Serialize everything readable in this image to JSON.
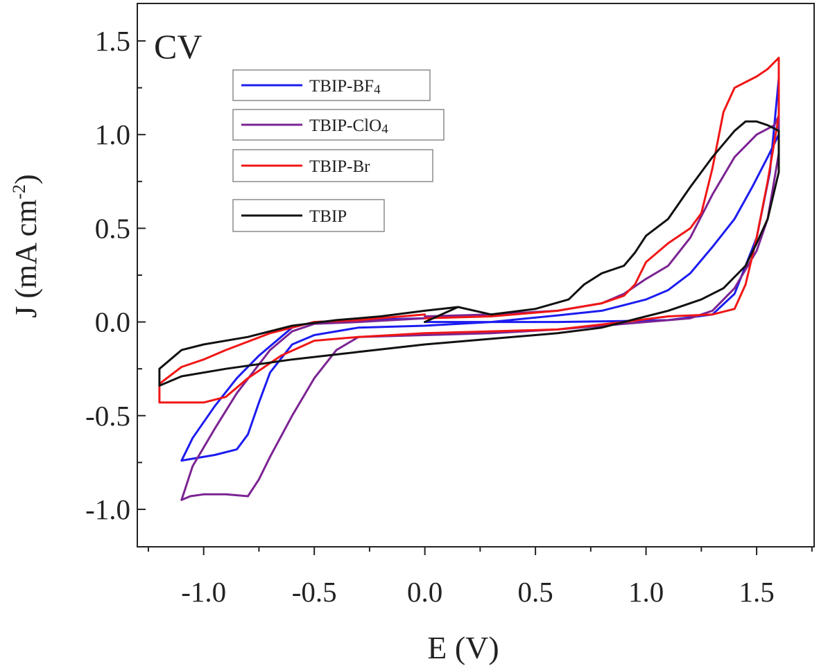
{
  "chart_data": {
    "type": "line",
    "title": "CV",
    "xlabel": "E (V)",
    "ylabel": "J (mA cm",
    "ylabel_sup": "-2",
    "ylabel_close": ")",
    "xlim": [
      -1.3,
      1.76
    ],
    "ylim": [
      -1.2,
      1.7
    ],
    "xticks": [
      -1.0,
      -0.5,
      0.0,
      0.5,
      1.0,
      1.5
    ],
    "xtick_labels": [
      "-1.0",
      "-0.5",
      "0.0",
      "0.5",
      "1.0",
      "1.5"
    ],
    "yticks": [
      -1.0,
      -0.5,
      0.0,
      0.5,
      1.0,
      1.5
    ],
    "ytick_labels": [
      "-1.0",
      "-0.5",
      "0.0",
      "0.5",
      "1.0",
      "1.5"
    ],
    "grid": false,
    "legend_position": "top-left",
    "colors": {
      "axis": "#222222",
      "ylabel": "#8a6a12"
    },
    "series": [
      {
        "name": "TBIP-BF",
        "name_sub": "4",
        "color": "#1c1cf0",
        "points": [
          [
            0.0,
            0.0
          ],
          [
            0.3,
            0.0
          ],
          [
            0.6,
            0.0
          ],
          [
            0.9,
            0.005
          ],
          [
            1.1,
            0.01
          ],
          [
            1.3,
            0.04
          ],
          [
            1.4,
            0.15
          ],
          [
            1.5,
            0.45
          ],
          [
            1.56,
            0.8
          ],
          [
            1.6,
            1.3
          ],
          [
            1.6,
            1.0
          ],
          [
            1.55,
            0.88
          ],
          [
            1.48,
            0.72
          ],
          [
            1.4,
            0.55
          ],
          [
            1.3,
            0.4
          ],
          [
            1.2,
            0.26
          ],
          [
            1.1,
            0.17
          ],
          [
            1.0,
            0.12
          ],
          [
            0.9,
            0.09
          ],
          [
            0.8,
            0.06
          ],
          [
            0.6,
            0.035
          ],
          [
            0.3,
            0.0
          ],
          [
            0.0,
            -0.02
          ],
          [
            -0.3,
            -0.03
          ],
          [
            -0.5,
            -0.07
          ],
          [
            -0.6,
            -0.12
          ],
          [
            -0.7,
            -0.27
          ],
          [
            -0.75,
            -0.43
          ],
          [
            -0.8,
            -0.6
          ],
          [
            -0.85,
            -0.68
          ],
          [
            -0.95,
            -0.71
          ],
          [
            -1.05,
            -0.73
          ],
          [
            -1.1,
            -0.74
          ],
          [
            -1.05,
            -0.62
          ],
          [
            -0.95,
            -0.45
          ],
          [
            -0.85,
            -0.3
          ],
          [
            -0.75,
            -0.18
          ],
          [
            -0.6,
            -0.03
          ],
          [
            -0.5,
            0.0
          ],
          [
            -0.3,
            0.01
          ],
          [
            0.0,
            0.02
          ]
        ]
      },
      {
        "name": "TBIP-ClO",
        "name_sub": "4",
        "color": "#7b2392",
        "points": [
          [
            0.0,
            0.03
          ],
          [
            0.3,
            0.04
          ],
          [
            0.6,
            0.06
          ],
          [
            0.8,
            0.1
          ],
          [
            0.9,
            0.15
          ],
          [
            1.0,
            0.23
          ],
          [
            1.1,
            0.3
          ],
          [
            1.2,
            0.45
          ],
          [
            1.3,
            0.68
          ],
          [
            1.4,
            0.88
          ],
          [
            1.5,
            1.0
          ],
          [
            1.58,
            1.05
          ],
          [
            1.6,
            1.1
          ],
          [
            1.6,
            0.9
          ],
          [
            1.55,
            0.55
          ],
          [
            1.5,
            0.38
          ],
          [
            1.4,
            0.18
          ],
          [
            1.3,
            0.06
          ],
          [
            1.2,
            0.02
          ],
          [
            1.0,
            0.0
          ],
          [
            0.8,
            -0.02
          ],
          [
            0.6,
            -0.04
          ],
          [
            0.3,
            -0.06
          ],
          [
            0.0,
            -0.07
          ],
          [
            -0.3,
            -0.08
          ],
          [
            -0.4,
            -0.15
          ],
          [
            -0.5,
            -0.3
          ],
          [
            -0.6,
            -0.5
          ],
          [
            -0.7,
            -0.72
          ],
          [
            -0.75,
            -0.84
          ],
          [
            -0.8,
            -0.93
          ],
          [
            -0.9,
            -0.92
          ],
          [
            -1.0,
            -0.92
          ],
          [
            -1.06,
            -0.93
          ],
          [
            -1.1,
            -0.95
          ],
          [
            -1.05,
            -0.77
          ],
          [
            -0.95,
            -0.57
          ],
          [
            -0.85,
            -0.38
          ],
          [
            -0.7,
            -0.15
          ],
          [
            -0.6,
            -0.05
          ],
          [
            -0.5,
            -0.01
          ],
          [
            -0.3,
            0.0
          ],
          [
            0.0,
            0.02
          ]
        ]
      },
      {
        "name": "TBIP-Br",
        "name_sub": "",
        "color": "#f01616",
        "points": [
          [
            0.0,
            0.02
          ],
          [
            0.3,
            0.03
          ],
          [
            0.6,
            0.06
          ],
          [
            0.8,
            0.1
          ],
          [
            0.9,
            0.14
          ],
          [
            0.95,
            0.2
          ],
          [
            1.0,
            0.32
          ],
          [
            1.1,
            0.42
          ],
          [
            1.2,
            0.5
          ],
          [
            1.25,
            0.58
          ],
          [
            1.3,
            0.82
          ],
          [
            1.35,
            1.12
          ],
          [
            1.4,
            1.25
          ],
          [
            1.45,
            1.28
          ],
          [
            1.5,
            1.31
          ],
          [
            1.55,
            1.35
          ],
          [
            1.6,
            1.41
          ],
          [
            1.6,
            1.1
          ],
          [
            1.55,
            0.75
          ],
          [
            1.5,
            0.45
          ],
          [
            1.45,
            0.2
          ],
          [
            1.4,
            0.07
          ],
          [
            1.3,
            0.04
          ],
          [
            1.1,
            0.03
          ],
          [
            0.9,
            0.0
          ],
          [
            0.6,
            -0.04
          ],
          [
            0.3,
            -0.05
          ],
          [
            0.0,
            -0.06
          ],
          [
            -0.3,
            -0.08
          ],
          [
            -0.5,
            -0.1
          ],
          [
            -0.65,
            -0.18
          ],
          [
            -0.8,
            -0.3
          ],
          [
            -0.9,
            -0.4
          ],
          [
            -1.0,
            -0.43
          ],
          [
            -1.1,
            -0.43
          ],
          [
            -1.2,
            -0.43
          ],
          [
            -1.2,
            -0.33
          ],
          [
            -1.1,
            -0.24
          ],
          [
            -1.0,
            -0.2
          ],
          [
            -0.9,
            -0.15
          ],
          [
            -0.7,
            -0.06
          ],
          [
            -0.5,
            0.0
          ],
          [
            -0.3,
            0.01
          ],
          [
            0.0,
            0.04
          ]
        ]
      },
      {
        "name": "TBIP",
        "name_sub": "",
        "color": "#111111",
        "points": [
          [
            0.0,
            0.0
          ],
          [
            0.15,
            0.08
          ],
          [
            0.3,
            0.04
          ],
          [
            0.5,
            0.07
          ],
          [
            0.65,
            0.12
          ],
          [
            0.72,
            0.2
          ],
          [
            0.8,
            0.26
          ],
          [
            0.9,
            0.3
          ],
          [
            0.95,
            0.37
          ],
          [
            1.0,
            0.46
          ],
          [
            1.1,
            0.55
          ],
          [
            1.2,
            0.72
          ],
          [
            1.3,
            0.88
          ],
          [
            1.4,
            1.02
          ],
          [
            1.45,
            1.07
          ],
          [
            1.5,
            1.07
          ],
          [
            1.55,
            1.05
          ],
          [
            1.6,
            1.02
          ],
          [
            1.6,
            0.8
          ],
          [
            1.55,
            0.55
          ],
          [
            1.5,
            0.42
          ],
          [
            1.45,
            0.3
          ],
          [
            1.35,
            0.18
          ],
          [
            1.25,
            0.12
          ],
          [
            1.1,
            0.06
          ],
          [
            1.0,
            0.03
          ],
          [
            0.8,
            -0.03
          ],
          [
            0.6,
            -0.06
          ],
          [
            0.3,
            -0.09
          ],
          [
            0.0,
            -0.12
          ],
          [
            -0.3,
            -0.16
          ],
          [
            -0.6,
            -0.2
          ],
          [
            -0.9,
            -0.25
          ],
          [
            -1.1,
            -0.29
          ],
          [
            -1.2,
            -0.34
          ],
          [
            -1.2,
            -0.25
          ],
          [
            -1.1,
            -0.15
          ],
          [
            -1.0,
            -0.12
          ],
          [
            -0.8,
            -0.08
          ],
          [
            -0.6,
            -0.02
          ],
          [
            -0.4,
            0.01
          ],
          [
            -0.2,
            0.03
          ],
          [
            0.0,
            0.06
          ],
          [
            0.15,
            0.08
          ]
        ]
      }
    ]
  }
}
